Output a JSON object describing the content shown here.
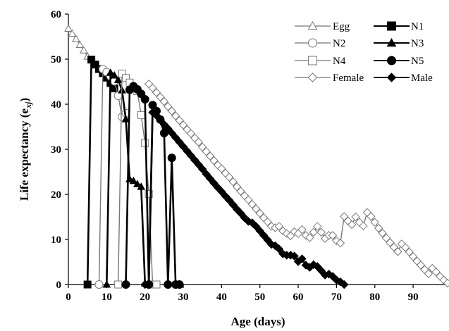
{
  "chart_data": {
    "type": "line",
    "title": "",
    "xlabel": "Age (days)",
    "ylabel": "Life expectancy (e",
    "ylabel_sub": "xj",
    "ylabel_close": ")",
    "xlim": [
      0,
      99
    ],
    "ylim": [
      0,
      60
    ],
    "xticks": [
      0,
      10,
      20,
      30,
      40,
      50,
      60,
      70,
      80,
      90
    ],
    "yticks": [
      0,
      10,
      20,
      30,
      40,
      50,
      60
    ],
    "grid": false,
    "legend_position": "top-right",
    "series": [
      {
        "name": "Egg",
        "marker": "triangle",
        "filled": false,
        "x": [
          0,
          1,
          2,
          3,
          4,
          5
        ],
        "y": [
          56.8,
          55.7,
          54.5,
          53.2,
          52.0,
          50.6
        ]
      },
      {
        "name": "N1",
        "marker": "square",
        "filled": true,
        "x": [
          5,
          6,
          7,
          8,
          9,
          10,
          11,
          12
        ],
        "y": [
          0,
          49.9,
          48.8,
          47.8,
          46.9,
          45.9,
          44.7,
          43.5
        ]
      },
      {
        "name": "N2",
        "marker": "circle",
        "filled": false,
        "x": [
          8,
          9,
          10,
          11,
          12,
          13,
          14,
          15
        ],
        "y": [
          0,
          47.8,
          47.1,
          46.2,
          45.1,
          41.9,
          37.2,
          38.0
        ]
      },
      {
        "name": "N3",
        "marker": "triangle",
        "filled": true,
        "x": [
          10,
          11,
          12,
          13,
          14,
          15,
          16,
          17,
          18,
          19,
          20,
          21
        ],
        "y": [
          0,
          47.0,
          46.4,
          45.4,
          43.1,
          36.7,
          23.4,
          23.0,
          22.3,
          21.7,
          0.3,
          0
        ]
      },
      {
        "name": "N4",
        "marker": "square",
        "filled": false,
        "x": [
          13,
          14,
          15,
          16,
          17,
          18,
          19,
          20,
          21,
          22,
          23
        ],
        "y": [
          0,
          46.8,
          45.8,
          44.8,
          43.7,
          42.9,
          37.6,
          31.4,
          20.1,
          0,
          0
        ]
      },
      {
        "name": "N5",
        "marker": "circle",
        "filled": true,
        "x": [
          15,
          16,
          17,
          18,
          19,
          20,
          21,
          22,
          23,
          24,
          25,
          26,
          27,
          28,
          29
        ],
        "y": [
          0,
          43.2,
          44.0,
          43.3,
          42.3,
          41.1,
          0,
          39.8,
          38.5,
          36.6,
          33.6,
          0,
          28.1,
          0,
          0
        ]
      },
      {
        "name": "Female",
        "marker": "diamond",
        "filled": false,
        "x": [
          21,
          22,
          23,
          24,
          25,
          26,
          27,
          28,
          29,
          30,
          31,
          32,
          33,
          34,
          35,
          36,
          37,
          38,
          39,
          40,
          41,
          42,
          43,
          44,
          45,
          46,
          47,
          48,
          49,
          50,
          51,
          52,
          53,
          54,
          55,
          56,
          57,
          58,
          59,
          60,
          61,
          62,
          63,
          64,
          65,
          66,
          67,
          68,
          69,
          70,
          71,
          72,
          73,
          74,
          75,
          76,
          77,
          78,
          79,
          80,
          81,
          82,
          83,
          84,
          85,
          86,
          87,
          88,
          89,
          90,
          91,
          92,
          93,
          94,
          95,
          96,
          97,
          98,
          99
        ],
        "y": [
          44.5,
          43.6,
          42.6,
          41.6,
          40.6,
          39.5,
          38.5,
          37.4,
          36.4,
          35.4,
          34.4,
          33.5,
          32.5,
          31.6,
          30.5,
          29.5,
          28.5,
          27.5,
          26.5,
          25.7,
          24.7,
          23.8,
          22.8,
          21.7,
          20.7,
          19.7,
          18.8,
          17.8,
          16.8,
          15.8,
          14.8,
          13.9,
          12.9,
          12.6,
          12.9,
          11.9,
          11.3,
          10.8,
          11.7,
          11.3,
          12.2,
          10.9,
          10.4,
          11.6,
          12.9,
          11.6,
          10.2,
          10.9,
          10.9,
          9.7,
          9.2,
          15.1,
          14.1,
          13.3,
          15.0,
          13.8,
          13.0,
          16.0,
          15.1,
          13.8,
          12.5,
          11.4,
          10.3,
          9.3,
          8.3,
          7.3,
          9.0,
          8.2,
          7.2,
          6.2,
          5.2,
          4.3,
          3.3,
          2.4,
          3.6,
          2.8,
          1.8,
          1.0,
          0.3
        ]
      },
      {
        "name": "Male",
        "marker": "diamond",
        "filled": true,
        "x": [
          20,
          21,
          22,
          23,
          24,
          25,
          26,
          27,
          28,
          29,
          30,
          31,
          32,
          33,
          34,
          35,
          36,
          37,
          38,
          39,
          40,
          41,
          42,
          43,
          44,
          45,
          46,
          47,
          48,
          49,
          50,
          51,
          52,
          53,
          54,
          55,
          56,
          57,
          58,
          59,
          60,
          61,
          62,
          63,
          64,
          65,
          66,
          67,
          68,
          69,
          70,
          71,
          72
        ],
        "y": [
          0,
          0,
          38.2,
          37.5,
          36.5,
          35.5,
          34.6,
          33.6,
          32.6,
          31.6,
          30.6,
          29.6,
          28.6,
          27.6,
          26.6,
          25.6,
          24.5,
          23.5,
          22.5,
          21.5,
          20.6,
          19.6,
          18.7,
          17.7,
          16.7,
          15.8,
          14.8,
          14.0,
          13.7,
          12.9,
          11.9,
          10.9,
          9.9,
          8.9,
          8.6,
          7.9,
          6.8,
          6.5,
          6.5,
          6.3,
          5.1,
          5.7,
          4.3,
          3.8,
          4.4,
          4.0,
          3.1,
          2.1,
          2.3,
          1.8,
          1.0,
          0.6,
          0
        ]
      }
    ]
  }
}
